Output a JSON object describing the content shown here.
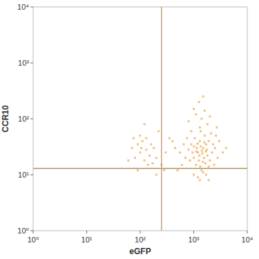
{
  "chart_data": {
    "type": "scatter",
    "x_label": "eGFP",
    "y_label": "CCR10",
    "log": true,
    "marker": "square",
    "color": "#e8962e",
    "xlim": [
      1,
      10000
    ],
    "ylim": [
      1,
      10000
    ],
    "xticks": [
      {
        "value": 1,
        "label": "10⁰"
      },
      {
        "value": 10,
        "label": "10¹"
      },
      {
        "value": 100,
        "label": "10²"
      },
      {
        "value": 1000,
        "label": "10³"
      },
      {
        "value": 10000,
        "label": "10⁴"
      }
    ],
    "yticks": [
      {
        "value": 1,
        "label": "10⁰"
      },
      {
        "value": 10,
        "label": "10¹"
      },
      {
        "value": 100,
        "label": "10²"
      },
      {
        "value": 1000,
        "label": "10³"
      },
      {
        "value": 10000,
        "label": "10⁴"
      }
    ],
    "gates": {
      "x": 250,
      "y": 13
    },
    "x": [
      1200,
      1500,
      1000,
      1800,
      1300,
      900,
      2000,
      1100,
      1600,
      1400,
      800,
      2500,
      1700,
      1250,
      1050,
      950,
      1350,
      1550,
      1900,
      2200,
      700,
      1150,
      1450,
      1650,
      1750,
      850,
      2100,
      1300,
      1000,
      1200,
      1500,
      600,
      650,
      2800,
      3000,
      2400,
      1800,
      1400,
      1600,
      1250,
      1500,
      1100,
      2000,
      900,
      750,
      1350,
      1420,
      1280,
      1180,
      1580,
      1680,
      1480,
      1320,
      1120,
      1020,
      1900,
      2300,
      2600,
      550,
      500,
      1700,
      1900,
      1300,
      450,
      400,
      3500,
      4000,
      2700,
      800,
      1000,
      80,
      100,
      120,
      90,
      110,
      150,
      70,
      130,
      200,
      180,
      250,
      60,
      100,
      140,
      90,
      300,
      350,
      220,
      120,
      160,
      280,
      200,
      75,
      105,
      130,
      170
    ],
    "values": [
      25,
      30,
      20,
      22,
      40,
      35,
      18,
      15,
      50,
      12,
      28,
      30,
      35,
      18,
      45,
      25,
      60,
      20,
      40,
      25,
      20,
      30,
      24,
      16,
      28,
      18,
      55,
      70,
      10,
      9,
      11,
      15,
      35,
      20,
      40,
      15,
      80,
      100,
      140,
      200,
      250,
      120,
      110,
      60,
      45,
      32,
      27,
      22,
      36,
      38,
      26,
      17,
      14,
      26,
      32,
      14,
      35,
      50,
      25,
      12,
      10,
      8,
      8,
      30,
      40,
      25,
      30,
      70,
      90,
      150,
      20,
      25,
      18,
      35,
      40,
      22,
      30,
      45,
      20,
      30,
      15,
      18,
      50,
      15,
      12,
      25,
      45,
      60,
      80,
      35,
      12,
      10,
      45,
      30,
      28,
      16
    ]
  }
}
